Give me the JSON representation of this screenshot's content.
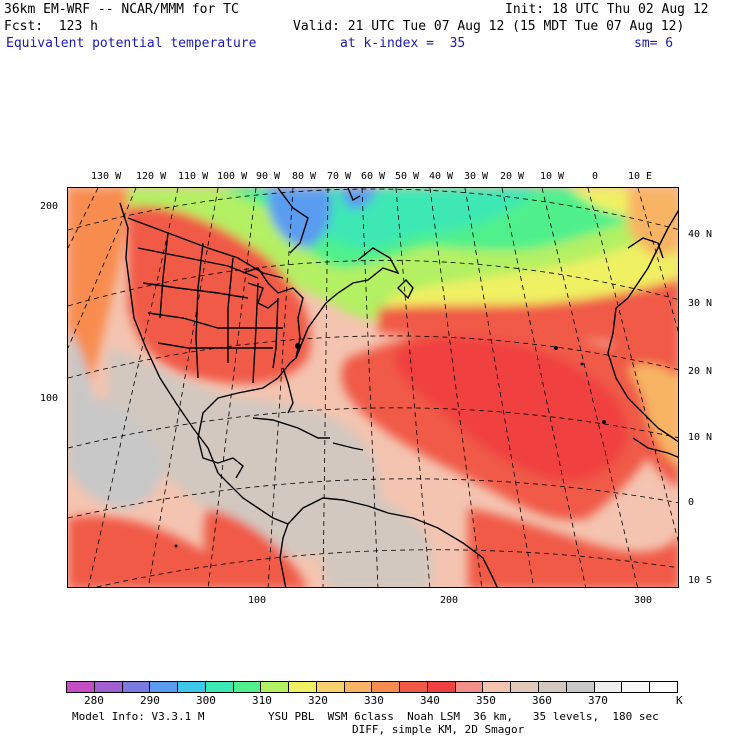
{
  "header": {
    "model": "36km EM-WRF -- NCAR/MMM for TC",
    "init": "Init: 18 UTC Thu 02 Aug 12",
    "fcst": "Fcst:  123 h",
    "valid": "Valid: 21 UTC Tue 07 Aug 12 (15 MDT Tue 07 Aug 12)",
    "field": "Equivalent potential temperature",
    "level": "at k-index =  35",
    "smooth": "sm= 6"
  },
  "map": {
    "top_lon_labels": [
      "130 W",
      "120 W",
      "110 W",
      "100 W",
      "90 W",
      "80 W",
      "70 W",
      "60 W",
      "50 W",
      "40 W",
      "30 W",
      "20 W",
      "10 W",
      "0",
      "10 E"
    ],
    "right_lat_labels": [
      "40 N",
      "30 N",
      "20 N",
      "10 N",
      "0",
      "10 S"
    ],
    "left_grid_labels": [
      "200",
      "100"
    ],
    "bottom_grid_labels": [
      "100",
      "200",
      "300"
    ]
  },
  "colorbar": {
    "colors": [
      "#c44fc4",
      "#a060d0",
      "#7a7ae0",
      "#5a9cf0",
      "#3cc8e8",
      "#3ce8b4",
      "#50f08c",
      "#b4f064",
      "#f0f064",
      "#f8d070",
      "#f8b464",
      "#f88c50",
      "#f05a46",
      "#f04040",
      "#f4908a",
      "#f4c4b0",
      "#e2cabb",
      "#d2c8c0",
      "#c8c8c8",
      "#eeeeee",
      "#f8f8f8",
      "#ffffff"
    ],
    "labels": [
      "280",
      "290",
      "300",
      "310",
      "320",
      "330",
      "340",
      "350",
      "360",
      "370",
      "K"
    ]
  },
  "footer": {
    "model_info": "Model Info: V3.3.1 M",
    "physics": "YSU PBL  WSM 6class  Noah LSM  36 km,   35 levels,  180 sec",
    "diff": "DIFF, simple KM, 2D Smagor"
  }
}
